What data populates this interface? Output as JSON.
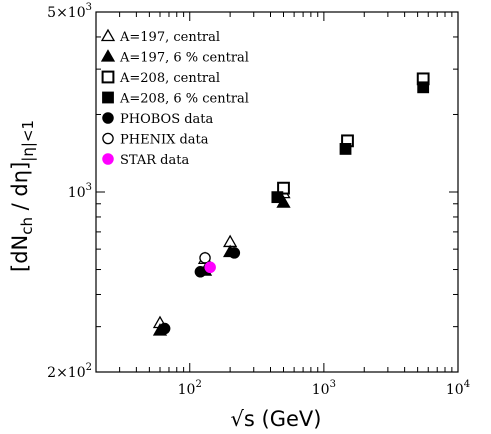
{
  "chart_data": {
    "type": "scatter",
    "xscale": "log",
    "yscale": "log",
    "xlim": [
      20,
      10000
    ],
    "ylim": [
      200,
      5000
    ],
    "xlabel": "√s (GeV)",
    "ylabel": {
      "main": "[dN",
      "main_sub": "ch",
      "mid": " / dη]",
      "sub": "|η|<1"
    },
    "x_ticks": [
      {
        "value": 100,
        "base": "10",
        "exp": "2"
      },
      {
        "value": 1000,
        "base": "10",
        "exp": "3"
      },
      {
        "value": 10000,
        "base": "10",
        "exp": "4"
      }
    ],
    "y_ticks": [
      {
        "value": 200,
        "base": "2×10",
        "exp": "2"
      },
      {
        "value": 1000,
        "base": "10",
        "exp": "3"
      },
      {
        "value": 5000,
        "base": "5×10",
        "exp": "3"
      }
    ],
    "grid": false,
    "legend_position": "top-left",
    "series": [
      {
        "name": "A=197, central",
        "marker": "triangle-open",
        "color": "#000000",
        "points": [
          [
            60,
            310
          ],
          [
            130,
            550
          ],
          [
            200,
            640
          ],
          [
            500,
            990
          ]
        ]
      },
      {
        "name": "A=197, 6 % central",
        "marker": "triangle-filled",
        "color": "#000000",
        "points": [
          [
            60,
            290
          ],
          [
            130,
            495
          ],
          [
            200,
            585
          ],
          [
            500,
            910
          ]
        ]
      },
      {
        "name": "A=208, central",
        "marker": "square-open",
        "color": "#000000",
        "points": [
          [
            500,
            1035
          ],
          [
            1500,
            1580
          ],
          [
            5500,
            2750
          ]
        ]
      },
      {
        "name": "A=208, 6 % central",
        "marker": "square-filled",
        "color": "#000000",
        "points": [
          [
            450,
            955
          ],
          [
            1450,
            1470
          ],
          [
            5500,
            2550
          ]
        ]
      },
      {
        "name": "PHOBOS data",
        "marker": "circle-filled",
        "color": "#000000",
        "points": [
          [
            65,
            295
          ],
          [
            120,
            490
          ],
          [
            215,
            580
          ]
        ]
      },
      {
        "name": "PHENIX data",
        "marker": "circle-open",
        "color": "#000000",
        "points": [
          [
            130,
            555
          ]
        ]
      },
      {
        "name": "STAR data",
        "marker": "circle-filled",
        "color": "#ff00ff",
        "points": [
          [
            142,
            510
          ]
        ]
      }
    ]
  }
}
